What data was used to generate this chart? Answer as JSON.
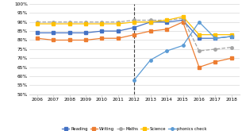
{
  "years": [
    2006,
    2007,
    2008,
    2009,
    2010,
    2011,
    2012,
    2013,
    2014,
    2015,
    2016,
    2017,
    2018
  ],
  "reading": [
    84,
    84,
    84,
    84,
    85,
    85,
    87,
    90,
    90,
    91,
    81,
    81,
    82
  ],
  "writing": [
    81,
    80,
    80,
    80,
    81,
    81,
    83,
    85,
    86,
    90,
    65,
    68,
    70
  ],
  "maths": [
    90,
    90,
    90,
    90,
    90,
    90,
    91,
    91,
    91,
    92,
    74,
    75,
    76
  ],
  "science": [
    89,
    89,
    89,
    89,
    89,
    89,
    90,
    90,
    91,
    93,
    83,
    83,
    83
  ],
  "phonics": [
    null,
    null,
    null,
    null,
    null,
    null,
    58,
    69,
    74,
    77,
    90,
    81,
    82
  ],
  "color_reading": "#4472C4",
  "color_writing": "#ED7D31",
  "color_maths": "#A5A5A5",
  "color_science": "#FFC000",
  "color_phonics": "#5B9BD5",
  "dashed_line_x": 2012,
  "ylim": [
    50,
    100
  ],
  "yticks": [
    50,
    55,
    60,
    65,
    70,
    75,
    80,
    85,
    90,
    95,
    100
  ],
  "ytick_labels": [
    "50%",
    "55%",
    "60%",
    "65%",
    "70%",
    "75%",
    "80%",
    "85%",
    "90%",
    "95%",
    "100%"
  ],
  "xticks": [
    2006,
    2007,
    2008,
    2009,
    2010,
    2011,
    2012,
    2013,
    2014,
    2015,
    2016,
    2017,
    2018
  ]
}
